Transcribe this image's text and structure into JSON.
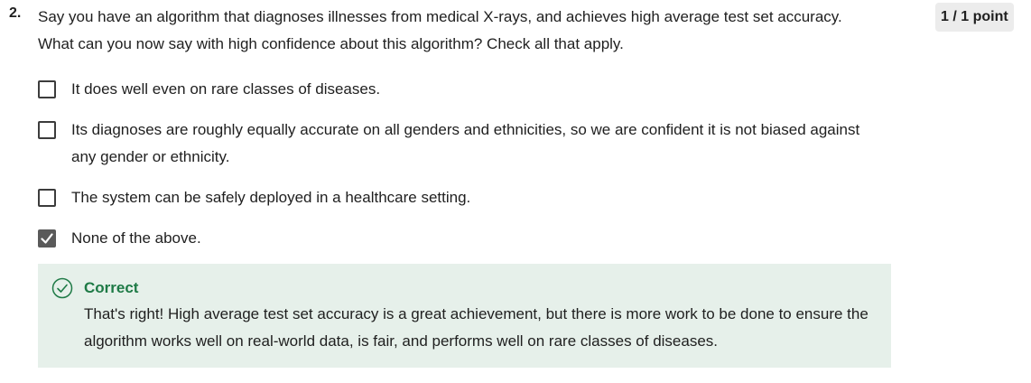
{
  "question": {
    "number": "2.",
    "text": "Say you have an algorithm that diagnoses illnesses from medical X-rays, and achieves high average test set accuracy. What can you now say with high confidence about this algorithm? Check all that apply.",
    "points": "1 / 1 point"
  },
  "options": [
    {
      "label": "It does well even on rare classes of diseases.",
      "checked": false
    },
    {
      "label": "Its diagnoses are roughly equally accurate on all genders and ethnicities, so we are confident it is not biased against any gender or ethnicity.",
      "checked": false
    },
    {
      "label": "The system can be safely deployed in a healthcare setting.",
      "checked": false
    },
    {
      "label": "None of the above.",
      "checked": true
    }
  ],
  "feedback": {
    "status": "Correct",
    "message": "That's right! High average test set accuracy is a great achievement, but there is more work to be done to ensure the algorithm works well on real-world data, is fair, and performs well on rare classes of diseases.",
    "icon": "check-circle-icon",
    "accent_color": "#1e7a46",
    "background_color": "#e6f0ea"
  }
}
